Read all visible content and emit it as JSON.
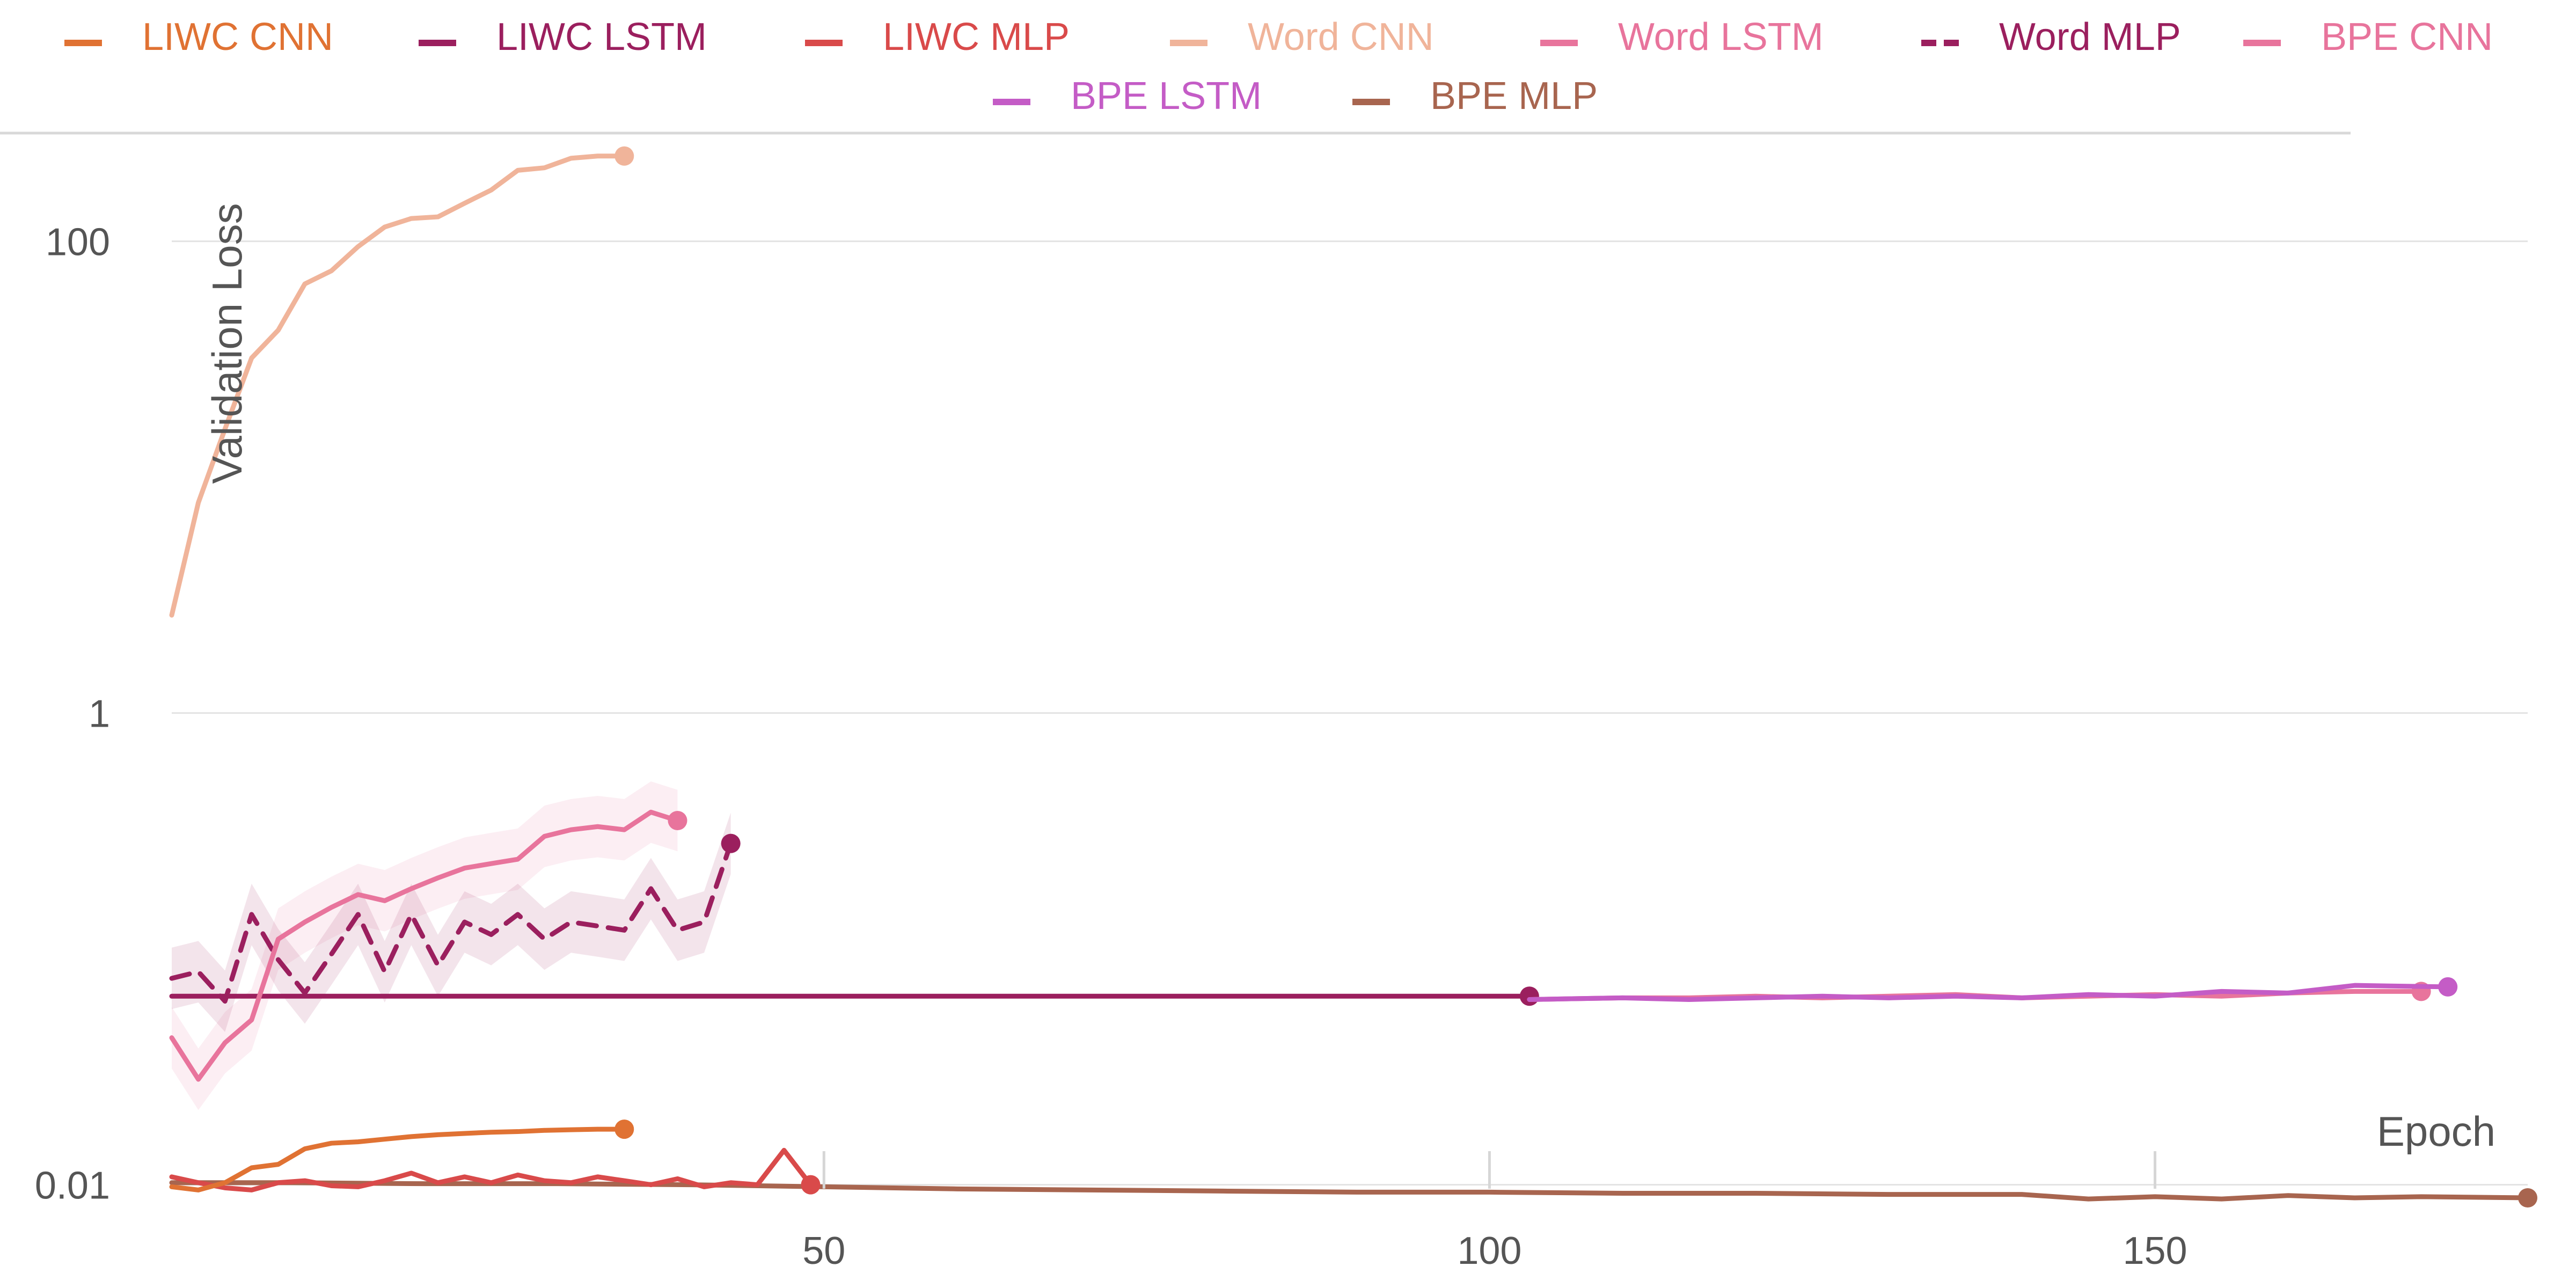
{
  "chart_data": {
    "type": "line",
    "title": "",
    "xlabel": "Epoch",
    "ylabel": "Validation Loss",
    "yscale": "log",
    "xlim": [
      1,
      178
    ],
    "ylim": [
      0.0078,
      300
    ],
    "x_ticks": [
      50,
      100,
      150
    ],
    "y_ticks": [
      0.01,
      1,
      100
    ],
    "y_tick_labels": [
      "0.01",
      "1",
      "100"
    ],
    "grid": true,
    "legend_position": "top",
    "series": [
      {
        "name": "LIWC CNN",
        "color": "#E07233",
        "dash": "solid",
        "x": [
          1,
          3,
          5,
          7,
          9,
          11,
          13,
          15,
          17,
          19,
          21,
          23,
          25,
          27,
          29,
          31,
          33,
          35
        ],
        "y": [
          0.0098,
          0.0095,
          0.0102,
          0.0118,
          0.0122,
          0.0142,
          0.015,
          0.0152,
          0.0156,
          0.016,
          0.0163,
          0.0165,
          0.0167,
          0.0168,
          0.017,
          0.0171,
          0.0172,
          0.0172
        ]
      },
      {
        "name": "LIWC LSTM",
        "color": "#9B1F5E",
        "dash": "solid",
        "x": [
          1,
          25,
          50,
          75,
          103
        ],
        "y": [
          0.063,
          0.063,
          0.063,
          0.063,
          0.063
        ]
      },
      {
        "name": "LIWC MLP",
        "color": "#D94A4A",
        "dash": "solid",
        "x": [
          1,
          3,
          5,
          7,
          9,
          11,
          13,
          15,
          17,
          19,
          21,
          23,
          25,
          27,
          29,
          31,
          33,
          35,
          37,
          39,
          41,
          43,
          45,
          47,
          49
        ],
        "y": [
          0.0108,
          0.0102,
          0.0097,
          0.0095,
          0.0102,
          0.0104,
          0.0099,
          0.0098,
          0.0104,
          0.0112,
          0.0102,
          0.0108,
          0.0102,
          0.011,
          0.0104,
          0.0102,
          0.0108,
          0.0104,
          0.01,
          0.0106,
          0.0098,
          0.0102,
          0.01,
          0.014,
          0.01
        ]
      },
      {
        "name": "Word CNN",
        "color": "#F0B49A",
        "dash": "solid",
        "x": [
          1,
          3,
          5,
          7,
          9,
          11,
          13,
          15,
          17,
          19,
          21,
          23,
          25,
          27,
          29,
          31,
          33,
          35
        ],
        "y": [
          2.6,
          7.8,
          16.0,
          32.0,
          42.0,
          66.0,
          75.0,
          95.0,
          115.0,
          125.0,
          127.0,
          145.0,
          165.0,
          200.0,
          205.0,
          225.0,
          230.0,
          230.0
        ]
      },
      {
        "name": "Word LSTM",
        "color": "#E8749C",
        "dash": "solid",
        "x": [
          1,
          3,
          5,
          7,
          9,
          11,
          13,
          15,
          17,
          19,
          21,
          23,
          25,
          27,
          29,
          31,
          33,
          35,
          37,
          39
        ],
        "y": [
          0.042,
          0.028,
          0.04,
          0.05,
          0.11,
          0.13,
          0.15,
          0.17,
          0.16,
          0.18,
          0.2,
          0.22,
          0.23,
          0.24,
          0.3,
          0.32,
          0.33,
          0.32,
          0.38,
          0.35
        ]
      },
      {
        "name": "Word MLP",
        "color": "#9B1F5E",
        "dash": "dashed",
        "x": [
          1,
          3,
          5,
          7,
          9,
          11,
          13,
          15,
          17,
          19,
          21,
          23,
          25,
          27,
          29,
          31,
          33,
          35,
          37,
          39,
          41,
          43
        ],
        "y": [
          0.075,
          0.08,
          0.06,
          0.14,
          0.09,
          0.065,
          0.095,
          0.14,
          0.08,
          0.14,
          0.085,
          0.13,
          0.115,
          0.14,
          0.11,
          0.13,
          0.125,
          0.12,
          0.18,
          0.12,
          0.13,
          0.28
        ]
      },
      {
        "name": "BPE CNN",
        "color": "#E8749C",
        "dash": "solid",
        "x": [
          103,
          110,
          115,
          120,
          125,
          130,
          135,
          140,
          145,
          150,
          155,
          160,
          165,
          170
        ],
        "y": [
          0.061,
          0.062,
          0.062,
          0.063,
          0.062,
          0.063,
          0.064,
          0.062,
          0.063,
          0.064,
          0.063,
          0.065,
          0.066,
          0.066
        ]
      },
      {
        "name": "BPE LSTM",
        "color": "#C45CC6",
        "dash": "solid",
        "x": [
          103,
          110,
          115,
          120,
          125,
          130,
          135,
          140,
          145,
          150,
          155,
          160,
          165,
          172
        ],
        "y": [
          0.061,
          0.062,
          0.061,
          0.062,
          0.063,
          0.062,
          0.063,
          0.062,
          0.064,
          0.063,
          0.066,
          0.065,
          0.07,
          0.069
        ]
      },
      {
        "name": "BPE MLP",
        "color": "#A8654F",
        "dash": "solid",
        "x": [
          1,
          10,
          20,
          30,
          40,
          50,
          60,
          70,
          80,
          90,
          100,
          110,
          120,
          130,
          140,
          145,
          150,
          155,
          160,
          165,
          170,
          178
        ],
        "y": [
          0.0102,
          0.0102,
          0.0101,
          0.0101,
          0.01,
          0.0098,
          0.0096,
          0.0095,
          0.0094,
          0.0093,
          0.0093,
          0.0092,
          0.0092,
          0.0091,
          0.0091,
          0.0087,
          0.0089,
          0.0087,
          0.009,
          0.0088,
          0.0089,
          0.0088
        ]
      }
    ]
  }
}
